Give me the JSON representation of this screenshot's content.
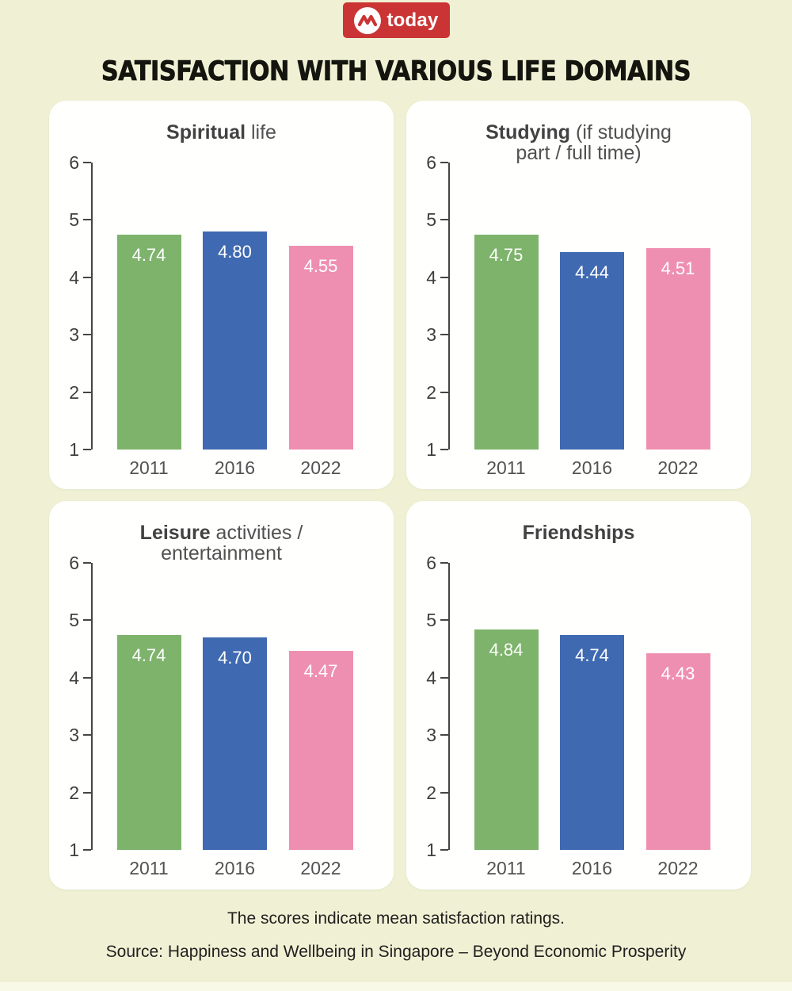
{
  "logo": {
    "label": "today"
  },
  "page_title": "SATISFACTION WITH VARIOUS LIFE DOMAINS",
  "colors": {
    "background": "#f0f1d4",
    "card": "#ffffff",
    "logo_red": "#cb3434",
    "series": [
      "#7db36b",
      "#3f69b1",
      "#ee8fb1"
    ],
    "axis": "#454545"
  },
  "chart_data": [
    {
      "type": "bar",
      "title": "Spiritual life",
      "title_line1_bold": "Spiritual",
      "title_line1_rest": " life",
      "title_line2": "",
      "categories": [
        "2011",
        "2016",
        "2022"
      ],
      "values": [
        4.74,
        4.8,
        4.55
      ],
      "ylim": [
        1,
        6
      ],
      "yticks": [
        1,
        2,
        3,
        4,
        5,
        6
      ]
    },
    {
      "type": "bar",
      "title": "Studying (if studying part / full time)",
      "title_line1_bold": "Studying",
      "title_line1_rest": " (if studying",
      "title_line2": "part / full time)",
      "categories": [
        "2011",
        "2016",
        "2022"
      ],
      "values": [
        4.75,
        4.44,
        4.51
      ],
      "ylim": [
        1,
        6
      ],
      "yticks": [
        1,
        2,
        3,
        4,
        5,
        6
      ]
    },
    {
      "type": "bar",
      "title": "Leisure activities / entertainment",
      "title_line1_bold": "Leisure",
      "title_line1_rest": " activities /",
      "title_line2": "entertainment",
      "categories": [
        "2011",
        "2016",
        "2022"
      ],
      "values": [
        4.74,
        4.7,
        4.47
      ],
      "ylim": [
        1,
        6
      ],
      "yticks": [
        1,
        2,
        3,
        4,
        5,
        6
      ]
    },
    {
      "type": "bar",
      "title": "Friendships",
      "title_line1_bold": "Friendships",
      "title_line1_rest": "",
      "title_line2": "",
      "categories": [
        "2011",
        "2016",
        "2022"
      ],
      "values": [
        4.84,
        4.74,
        4.43
      ],
      "ylim": [
        1,
        6
      ],
      "yticks": [
        1,
        2,
        3,
        4,
        5,
        6
      ]
    }
  ],
  "footer": {
    "note": "The scores indicate mean satisfaction ratings.",
    "source": "Source: Happiness and Wellbeing in Singapore – Beyond Economic Prosperity"
  }
}
